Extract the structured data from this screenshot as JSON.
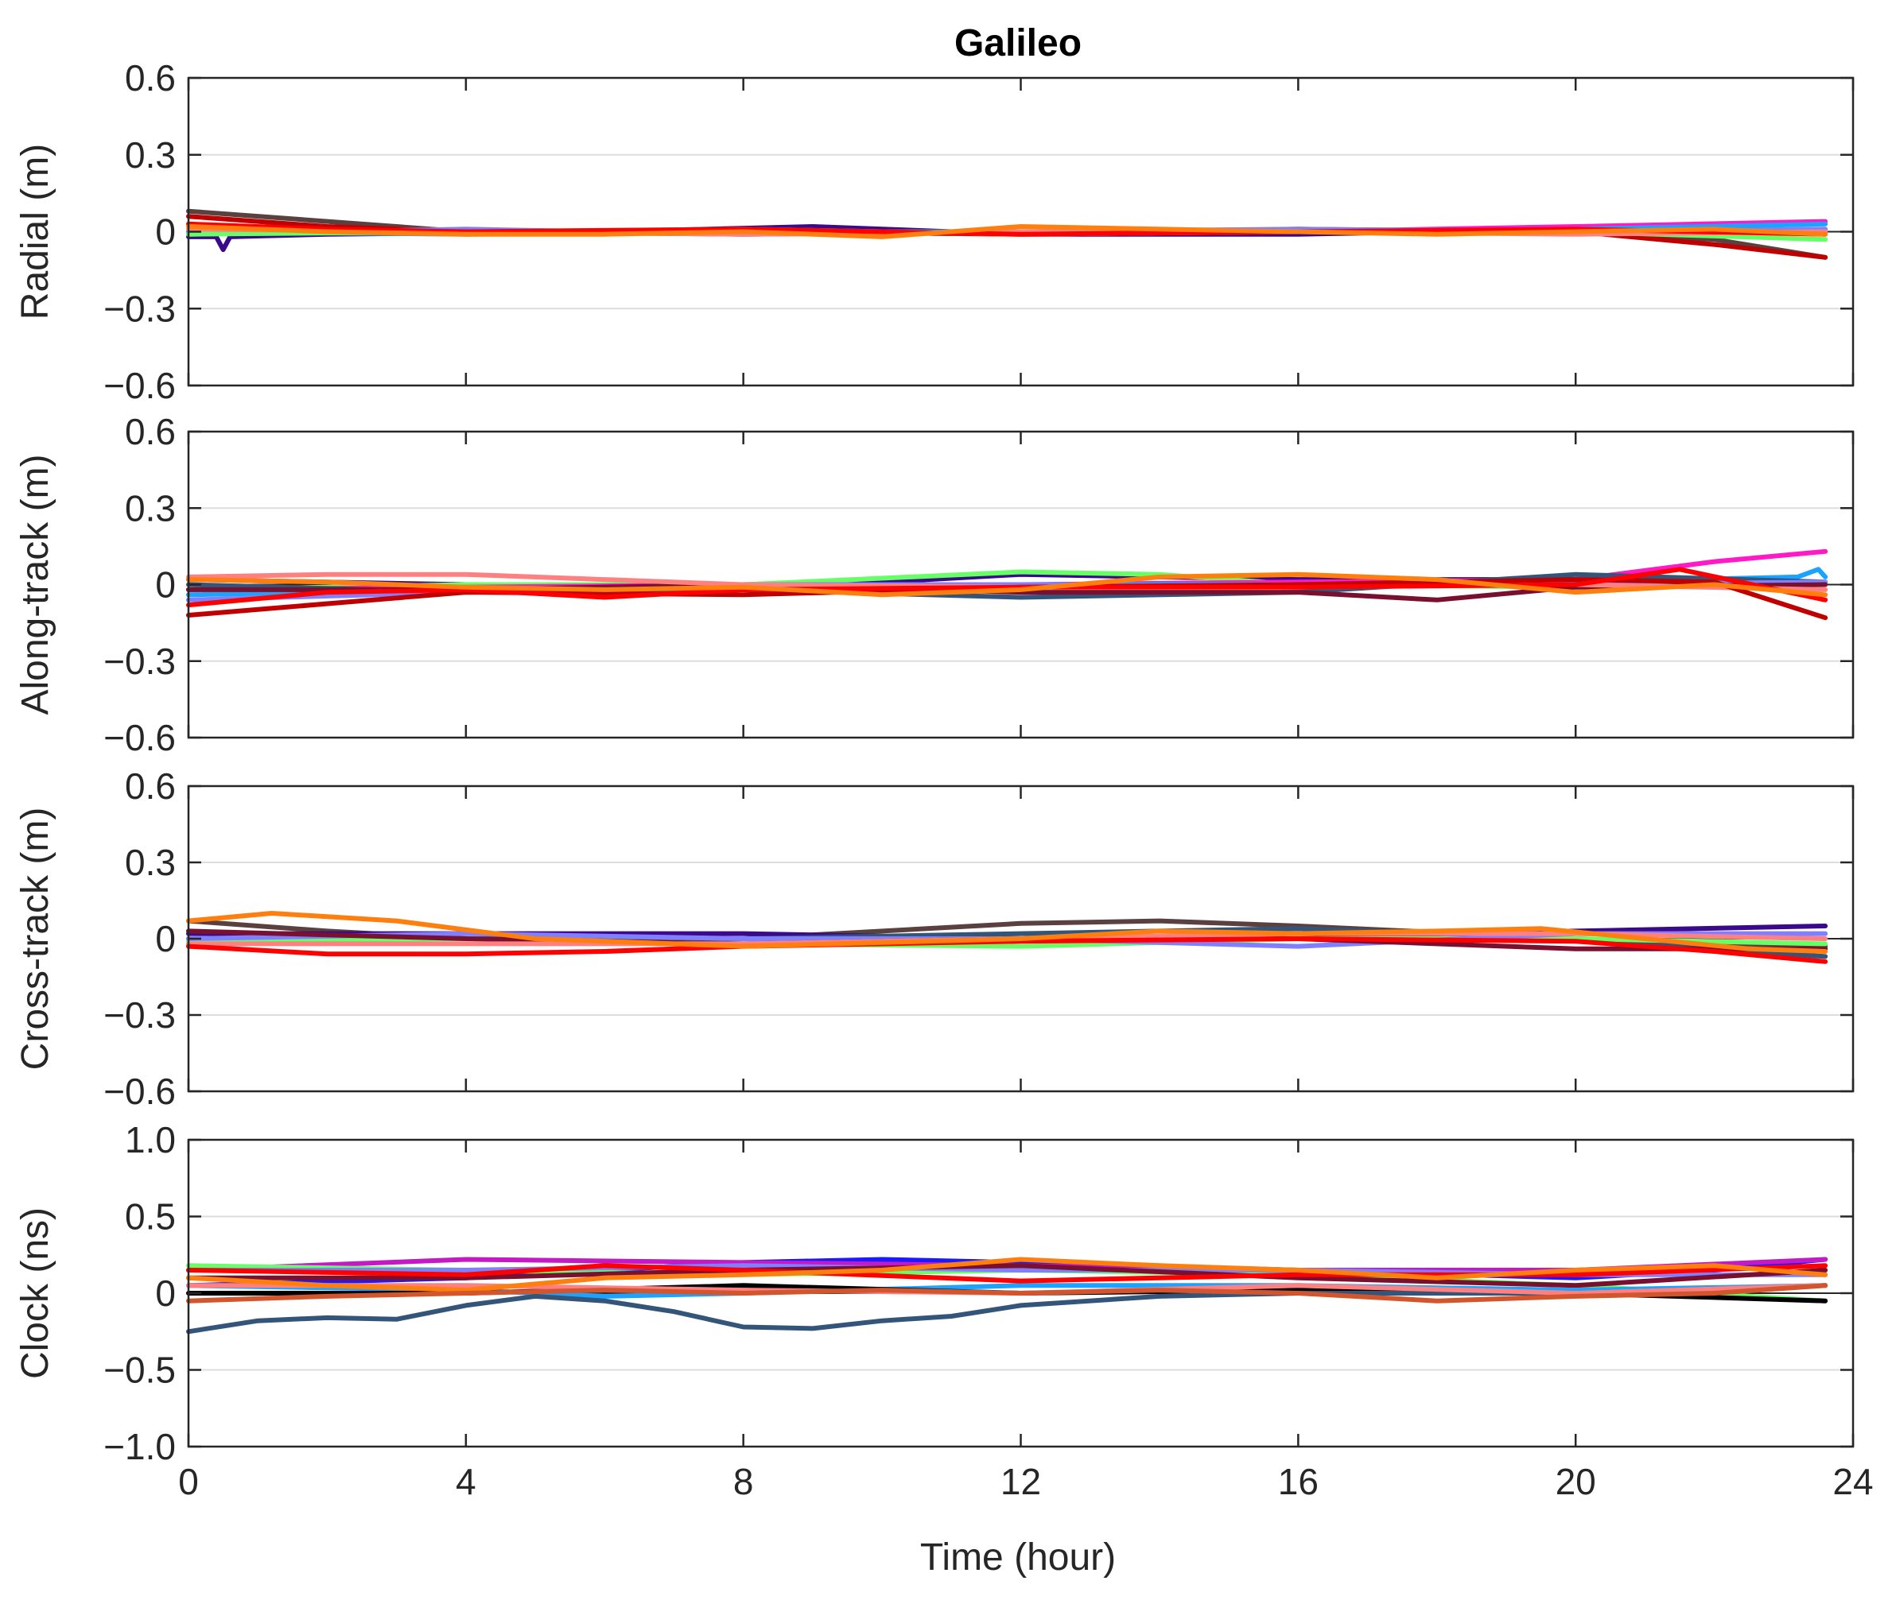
{
  "figure": {
    "title": "Galileo",
    "xlabel": "Time (hour)"
  },
  "chart_data": [
    {
      "type": "line",
      "title": "Galileo",
      "ylabel": "Radial (m)",
      "xlim": [
        0,
        24
      ],
      "ylim": [
        -0.6,
        0.6
      ],
      "xticks": [
        0,
        4,
        8,
        12,
        16,
        20,
        24
      ],
      "yticks": [
        0.6,
        0.3,
        0,
        -0.3,
        -0.6
      ],
      "ytick_labels": [
        "0.6",
        "0.3",
        "0",
        "−0.3",
        "−0.6"
      ],
      "grid": true,
      "series": [
        {
          "color": "#5b4040",
          "x": [
            0,
            2,
            4,
            8,
            12,
            16,
            20,
            22,
            23.6
          ],
          "y": [
            0.08,
            0.04,
            0.0,
            -0.01,
            0.0,
            0.0,
            0.0,
            -0.03,
            -0.1
          ]
        },
        {
          "color": "#c00000",
          "x": [
            0,
            2,
            4,
            8,
            12,
            16,
            20,
            22,
            23.6
          ],
          "y": [
            0.06,
            0.02,
            0.0,
            0.0,
            -0.01,
            0.01,
            0.0,
            -0.05,
            -0.1
          ]
        },
        {
          "color": "#3a0a8a",
          "x": [
            0,
            0.4,
            0.5,
            0.6,
            2,
            6,
            9,
            12,
            16,
            20,
            23.6
          ],
          "y": [
            -0.02,
            -0.02,
            -0.07,
            -0.02,
            -0.01,
            0.0,
            0.02,
            -0.01,
            -0.01,
            0.01,
            0.0
          ]
        },
        {
          "color": "#ff1ac6",
          "x": [
            0,
            4,
            8,
            12,
            16,
            20,
            23.6
          ],
          "y": [
            0.0,
            0.0,
            0.0,
            0.0,
            0.0,
            0.02,
            0.04
          ]
        },
        {
          "color": "#7f7fff",
          "x": [
            0,
            4,
            8,
            12,
            16,
            20,
            23.6
          ],
          "y": [
            -0.01,
            0.01,
            -0.01,
            0.0,
            0.01,
            0.0,
            0.01
          ]
        },
        {
          "color": "#1aa3ff",
          "x": [
            0,
            4,
            8,
            12,
            16,
            20,
            23.6
          ],
          "y": [
            0.0,
            -0.01,
            0.0,
            0.0,
            0.0,
            0.01,
            0.03
          ]
        },
        {
          "color": "#66ff66",
          "x": [
            0,
            4,
            8,
            12,
            16,
            20,
            23.6
          ],
          "y": [
            -0.01,
            0.0,
            0.01,
            -0.01,
            0.0,
            0.0,
            -0.03
          ]
        },
        {
          "color": "#ff8080",
          "x": [
            0,
            4,
            8,
            12,
            16,
            20,
            23.6
          ],
          "y": [
            0.01,
            0.0,
            -0.01,
            0.0,
            0.0,
            -0.01,
            0.0
          ]
        },
        {
          "color": "#ff0000",
          "x": [
            0,
            2,
            4,
            8,
            12,
            16,
            20,
            23.6
          ],
          "y": [
            0.03,
            0.01,
            0.0,
            0.01,
            -0.01,
            0.0,
            0.01,
            -0.01
          ]
        },
        {
          "color": "#ff7f0e",
          "x": [
            0,
            2,
            4,
            6,
            8,
            10,
            12,
            14,
            16,
            18,
            20,
            22,
            23.6
          ],
          "y": [
            0.02,
            0.0,
            -0.01,
            -0.01,
            0.0,
            -0.02,
            0.02,
            0.01,
            0.0,
            -0.01,
            0.0,
            0.01,
            -0.01
          ]
        }
      ]
    },
    {
      "type": "line",
      "ylabel": "Along-track (m)",
      "xlim": [
        0,
        24
      ],
      "ylim": [
        -0.6,
        0.6
      ],
      "xticks": [
        0,
        4,
        8,
        12,
        16,
        20,
        24
      ],
      "yticks": [
        0.6,
        0.3,
        0,
        -0.3,
        -0.6
      ],
      "ytick_labels": [
        "0.6",
        "0.3",
        "0",
        "−0.3",
        "−0.6"
      ],
      "grid": true,
      "series": [
        {
          "color": "#3a0a8a",
          "x": [
            0,
            4,
            8,
            12,
            16,
            20,
            23.6
          ],
          "y": [
            0.02,
            0.0,
            -0.02,
            0.04,
            0.02,
            0.02,
            0.0
          ]
        },
        {
          "color": "#66ff66",
          "x": [
            0,
            4,
            8,
            12,
            14,
            16,
            20,
            23.6
          ],
          "y": [
            -0.02,
            0.0,
            0.0,
            0.05,
            0.04,
            0.0,
            -0.01,
            0.0
          ]
        },
        {
          "color": "#ff1ac6",
          "x": [
            0,
            4,
            8,
            12,
            16,
            20,
            22,
            23.6
          ],
          "y": [
            -0.02,
            -0.01,
            0.0,
            0.0,
            0.01,
            0.02,
            0.09,
            0.13
          ]
        },
        {
          "color": "#1aa3ff",
          "x": [
            0,
            4,
            8,
            12,
            16,
            20,
            23.2,
            23.5,
            23.6
          ],
          "y": [
            -0.04,
            -0.02,
            0.0,
            0.0,
            0.0,
            0.01,
            0.03,
            0.06,
            0.03
          ]
        },
        {
          "color": "#34557a",
          "x": [
            0,
            4,
            8,
            12,
            16,
            20,
            23.6
          ],
          "y": [
            0.0,
            -0.03,
            -0.02,
            -0.05,
            -0.03,
            0.04,
            0.01
          ]
        },
        {
          "color": "#7f7fff",
          "x": [
            0,
            4,
            8,
            12,
            16,
            20,
            23.6
          ],
          "y": [
            -0.06,
            -0.03,
            0.0,
            0.0,
            -0.01,
            0.0,
            0.01
          ]
        },
        {
          "color": "#7a1030",
          "x": [
            0,
            4,
            8,
            12,
            16,
            18,
            20,
            23.6
          ],
          "y": [
            -0.02,
            -0.02,
            0.0,
            -0.03,
            -0.03,
            -0.06,
            -0.01,
            0.0
          ]
        },
        {
          "color": "#ff8080",
          "x": [
            0,
            2,
            4,
            8,
            12,
            16,
            20,
            23.6
          ],
          "y": [
            0.03,
            0.04,
            0.04,
            0.0,
            -0.01,
            0.0,
            0.0,
            -0.02
          ]
        },
        {
          "color": "#c00000",
          "x": [
            0,
            4,
            8,
            12,
            16,
            20,
            22,
            23.6
          ],
          "y": [
            -0.12,
            -0.03,
            -0.04,
            -0.01,
            0.0,
            0.02,
            0.01,
            -0.13
          ]
        },
        {
          "color": "#ff0000",
          "x": [
            0,
            2,
            4,
            6,
            8,
            12,
            16,
            20,
            21.5,
            23.6
          ],
          "y": [
            -0.08,
            -0.03,
            -0.02,
            -0.05,
            -0.02,
            -0.01,
            -0.01,
            0.0,
            0.06,
            -0.06
          ]
        },
        {
          "color": "#ff7f0e",
          "x": [
            0,
            2,
            4,
            6,
            8,
            10,
            12,
            14,
            16,
            18,
            20,
            22,
            23.6
          ],
          "y": [
            0.02,
            0.01,
            -0.01,
            -0.02,
            -0.01,
            -0.04,
            -0.02,
            0.03,
            0.04,
            0.02,
            -0.03,
            0.0,
            -0.04
          ]
        }
      ]
    },
    {
      "type": "line",
      "ylabel": "Cross-track (m)",
      "xlim": [
        0,
        24
      ],
      "ylim": [
        -0.6,
        0.6
      ],
      "xticks": [
        0,
        4,
        8,
        12,
        16,
        20,
        24
      ],
      "yticks": [
        0.6,
        0.3,
        0,
        -0.3,
        -0.6
      ],
      "ytick_labels": [
        "0.6",
        "0.3",
        "0",
        "−0.3",
        "−0.6"
      ],
      "grid": true,
      "series": [
        {
          "color": "#5b4040",
          "x": [
            0,
            2,
            4,
            8,
            12,
            14,
            16,
            20,
            23.6
          ],
          "y": [
            0.07,
            0.03,
            0.0,
            0.0,
            0.06,
            0.07,
            0.05,
            0.0,
            -0.03
          ]
        },
        {
          "color": "#3a0a8a",
          "x": [
            0,
            4,
            8,
            12,
            16,
            20,
            23.6
          ],
          "y": [
            0.02,
            0.02,
            0.02,
            0.0,
            0.0,
            0.03,
            0.05
          ]
        },
        {
          "color": "#34557a",
          "x": [
            0,
            4,
            8,
            12,
            16,
            20,
            23.6
          ],
          "y": [
            0.0,
            0.0,
            0.0,
            0.02,
            0.04,
            0.0,
            -0.07
          ]
        },
        {
          "color": "#66ff66",
          "x": [
            0,
            4,
            8,
            12,
            16,
            20,
            23.6
          ],
          "y": [
            -0.01,
            0.0,
            -0.02,
            -0.03,
            0.0,
            0.0,
            -0.02
          ]
        },
        {
          "color": "#7f7fff",
          "x": [
            0,
            4,
            8,
            12,
            16,
            20,
            23.6
          ],
          "y": [
            0.0,
            0.02,
            0.0,
            0.0,
            -0.03,
            0.02,
            0.02
          ]
        },
        {
          "color": "#7a1030",
          "x": [
            0,
            4,
            8,
            12,
            16,
            20,
            23.6
          ],
          "y": [
            0.03,
            0.0,
            -0.02,
            0.0,
            0.0,
            -0.04,
            -0.04
          ]
        },
        {
          "color": "#ff8080",
          "x": [
            0,
            4,
            8,
            12,
            16,
            20,
            23.6
          ],
          "y": [
            -0.02,
            -0.02,
            -0.02,
            0.0,
            0.02,
            0.02,
            0.0
          ]
        },
        {
          "color": "#ff0000",
          "x": [
            0,
            2,
            4,
            6,
            8,
            12,
            16,
            20,
            22,
            23.6
          ],
          "y": [
            -0.03,
            -0.06,
            -0.06,
            -0.05,
            -0.03,
            -0.01,
            0.0,
            -0.01,
            -0.05,
            -0.09
          ]
        },
        {
          "color": "#ff7f0e",
          "x": [
            0,
            1.2,
            3,
            5,
            8,
            12,
            14,
            16,
            18,
            19.5,
            21,
            22.5,
            23.6
          ],
          "y": [
            0.07,
            0.1,
            0.07,
            0.0,
            -0.03,
            0.0,
            0.03,
            0.02,
            0.03,
            0.04,
            0.0,
            -0.04,
            -0.05
          ]
        }
      ]
    },
    {
      "type": "line",
      "ylabel": "Clock (ns)",
      "xlim": [
        0,
        24
      ],
      "ylim": [
        -1.0,
        1.0
      ],
      "xticks": [
        0,
        4,
        8,
        12,
        16,
        20,
        24
      ],
      "xtick_labels": [
        "0",
        "4",
        "8",
        "12",
        "16",
        "20",
        "24"
      ],
      "yticks": [
        1.0,
        0.5,
        0,
        -0.5,
        -1.0
      ],
      "ytick_labels": [
        "1.0",
        "0.5",
        "0",
        "−0.5",
        "−1.0"
      ],
      "xlabel": "Time (hour)",
      "grid": true,
      "series": [
        {
          "color": "#1a1aff",
          "x": [
            0,
            4,
            8,
            10,
            12,
            16,
            20,
            22,
            23.6
          ],
          "y": [
            0.05,
            0.1,
            0.2,
            0.22,
            0.2,
            0.15,
            0.1,
            0.15,
            0.22
          ]
        },
        {
          "color": "#c619c6",
          "x": [
            0,
            4,
            8,
            12,
            16,
            20,
            23.6
          ],
          "y": [
            0.15,
            0.22,
            0.2,
            0.18,
            0.15,
            0.15,
            0.22
          ]
        },
        {
          "color": "#66ff66",
          "x": [
            0,
            4,
            8,
            12,
            16,
            20,
            23.6
          ],
          "y": [
            0.18,
            0.15,
            0.12,
            0.15,
            0.12,
            0.05,
            -0.05
          ]
        },
        {
          "color": "#7f7fff",
          "x": [
            0,
            4,
            8,
            12,
            16,
            20,
            23.6
          ],
          "y": [
            0.15,
            0.15,
            0.18,
            0.15,
            0.15,
            0.12,
            0.12
          ]
        },
        {
          "color": "#7a1030",
          "x": [
            0,
            4,
            8,
            12,
            16,
            20,
            23.6
          ],
          "y": [
            0.1,
            0.1,
            0.15,
            0.18,
            0.1,
            0.05,
            0.15
          ]
        },
        {
          "color": "#1aa3ff",
          "x": [
            0,
            4,
            6,
            8,
            12,
            16,
            20,
            23.6
          ],
          "y": [
            0.05,
            0.02,
            -0.02,
            0.0,
            0.05,
            0.05,
            0.02,
            0.05
          ]
        },
        {
          "color": "#000000",
          "x": [
            0,
            4,
            8,
            12,
            16,
            20,
            23.6
          ],
          "y": [
            0.0,
            0.0,
            0.05,
            0.0,
            0.02,
            0.0,
            -0.05
          ]
        },
        {
          "color": "#34557a",
          "x": [
            0,
            1,
            2,
            3,
            4,
            5,
            6,
            7,
            8,
            9,
            10,
            11,
            12,
            14,
            16,
            20,
            23.6
          ],
          "y": [
            -0.25,
            -0.18,
            -0.16,
            -0.17,
            -0.08,
            -0.02,
            -0.05,
            -0.12,
            -0.22,
            -0.23,
            -0.18,
            -0.15,
            -0.08,
            -0.02,
            0.0,
            0.0,
            0.05
          ]
        },
        {
          "color": "#ff0000",
          "x": [
            0,
            4,
            6,
            8,
            12,
            16,
            20,
            23.6
          ],
          "y": [
            0.15,
            0.12,
            0.18,
            0.15,
            0.08,
            0.12,
            0.12,
            0.18
          ]
        },
        {
          "color": "#ff8080",
          "x": [
            0,
            4,
            8,
            12,
            16,
            20,
            23.6
          ],
          "y": [
            0.05,
            0.05,
            0.02,
            0.0,
            0.05,
            0.0,
            0.05
          ]
        },
        {
          "color": "#ff7f0e",
          "x": [
            0,
            2,
            4,
            6,
            8,
            10,
            12,
            14,
            16,
            18,
            20,
            22,
            23.6
          ],
          "y": [
            0.1,
            0.05,
            0.02,
            0.1,
            0.12,
            0.15,
            0.22,
            0.18,
            0.15,
            0.1,
            0.15,
            0.18,
            0.12
          ]
        },
        {
          "color": "#d2552d",
          "x": [
            0,
            2,
            4,
            6,
            8,
            10,
            12,
            14,
            16,
            18,
            20,
            22,
            23.6
          ],
          "y": [
            -0.05,
            -0.02,
            0.0,
            0.02,
            0.0,
            0.02,
            0.0,
            0.02,
            0.0,
            -0.05,
            -0.02,
            0.0,
            0.05
          ]
        }
      ]
    }
  ]
}
